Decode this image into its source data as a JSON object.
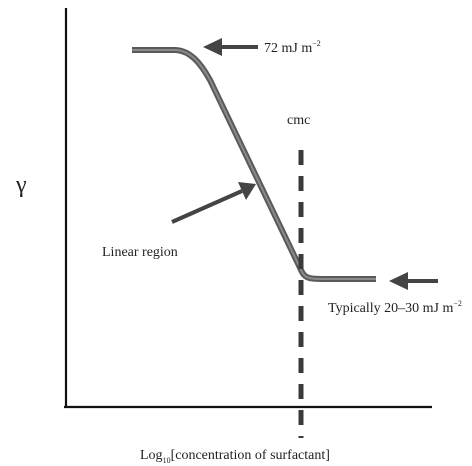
{
  "chart_data": {
    "type": "line",
    "ylabel": "γ",
    "xlabel_parts": {
      "prefix": "Log",
      "subscript": "10",
      "suffix": "[concentration of surfactant]"
    },
    "series": [
      {
        "values_described": "surface tension vs log concentration",
        "curve": "plateau, linear decrease, plateau after cmc"
      }
    ],
    "annotations": {
      "top_value": {
        "prefix": "72 mJ m",
        "superscript": "−2"
      },
      "cmc": "cmc",
      "linear_region": "Linear region",
      "bottom_value": {
        "prefix": "Typically 20–30 mJ m",
        "superscript": "−2"
      }
    },
    "grid": false
  },
  "style": {
    "curve_color": "#5a5a5a",
    "axis_color": "#111111",
    "arrow_color": "#444444"
  }
}
